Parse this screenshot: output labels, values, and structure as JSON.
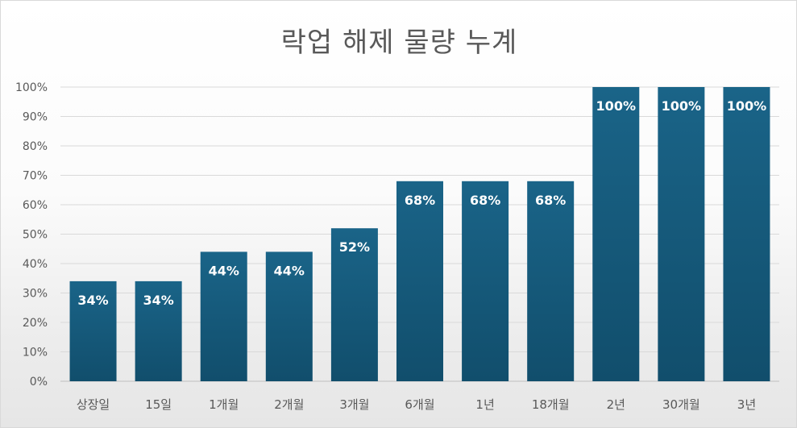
{
  "chart_data": {
    "type": "bar",
    "title": "락업 해제 물량 누계",
    "categories": [
      "상장일",
      "15일",
      "1개월",
      "2개월",
      "3개월",
      "6개월",
      "1년",
      "18개월",
      "2년",
      "30개월",
      "3년"
    ],
    "values": [
      34,
      34,
      44,
      44,
      52,
      68,
      68,
      68,
      100,
      100,
      100
    ],
    "data_labels": [
      "34%",
      "34%",
      "44%",
      "44%",
      "52%",
      "68%",
      "68%",
      "68%",
      "100%",
      "100%",
      "100%"
    ],
    "y_ticks": [
      "0%",
      "10%",
      "20%",
      "30%",
      "40%",
      "50%",
      "60%",
      "70%",
      "80%",
      "90%",
      "100%"
    ],
    "ylim": [
      0,
      100
    ],
    "grid": true,
    "legend": "none",
    "colors": {
      "bar_top": "#1a6488",
      "bar_bottom": "#114e6c",
      "label": "#ffffff",
      "axis_text": "#595959",
      "grid": "#d9d9d9"
    }
  }
}
